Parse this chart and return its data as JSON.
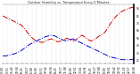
{
  "title": "Outdoor Humidity vs. Temperature Every 5 Minutes",
  "bg_color": "#ffffff",
  "grid_color": "#bbbbbb",
  "temp_color": "#cc0000",
  "hum_color": "#0000cc",
  "ylim": [
    20,
    100
  ],
  "yticks": [
    25,
    35,
    45,
    55,
    65,
    75,
    85,
    95
  ],
  "temp_data": [
    84,
    82,
    80,
    78,
    76,
    74,
    72,
    68,
    62,
    57,
    53,
    50,
    49,
    48,
    50,
    52,
    53,
    51,
    49,
    50,
    52,
    54,
    52,
    50,
    52,
    55,
    58,
    55,
    52,
    50,
    52,
    55,
    58,
    60,
    65,
    72,
    78,
    83,
    87,
    90,
    92,
    94,
    95,
    96
  ],
  "hum_data": [
    30,
    30,
    31,
    32,
    33,
    35,
    37,
    40,
    43,
    46,
    48,
    50,
    52,
    54,
    56,
    57,
    58,
    57,
    55,
    53,
    51,
    50,
    52,
    53,
    51,
    49,
    47,
    45,
    43,
    41,
    39,
    37,
    35,
    33,
    31,
    29,
    28,
    27,
    26,
    25,
    25,
    25,
    25,
    26
  ],
  "n_points": 44,
  "n_xticks": 28,
  "title_fontsize": 2.5,
  "tick_fontsize": 2.2,
  "linewidth": 0.7,
  "right_bar_color": "#000000"
}
